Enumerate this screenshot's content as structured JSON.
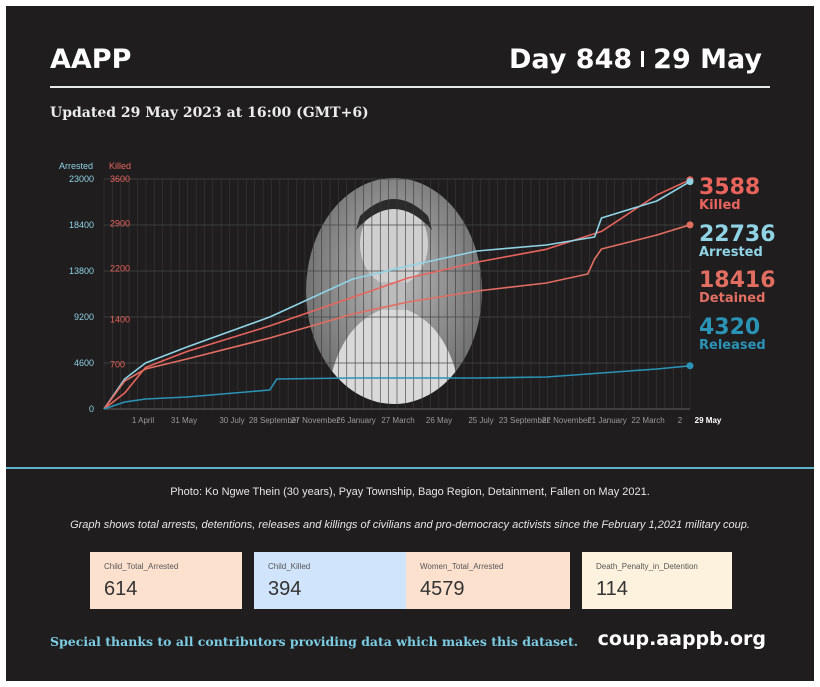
{
  "header": {
    "brand": "AAPP",
    "day": "Day 848",
    "date": "29 May",
    "updated": "Updated 29 May 2023 at 16:00 (GMT+6)"
  },
  "colors": {
    "background": "#1f1d1e",
    "arrested": "#8fd3e5",
    "killed": "#e8645d",
    "detained": "#e26e62",
    "released": "#2a93b6",
    "accent_rule": "#5fb1c9"
  },
  "chart_data": {
    "type": "line",
    "axis_titles": {
      "left_a": "Arrested",
      "left_b": "Killed"
    },
    "y_arrested_ticks": [
      "23000",
      "18400",
      "13800",
      "9200",
      "4600",
      "0"
    ],
    "y_killed_ticks": [
      "3600",
      "2900",
      "2200",
      "1400",
      "700"
    ],
    "ylim_arrested": [
      0,
      23000
    ],
    "ylim_killed": [
      0,
      3600
    ],
    "x_ticks": [
      "1 April",
      "31 May",
      "30 July",
      "28 September",
      "27 November",
      "26 January",
      "27 March",
      "26 May",
      "25 July",
      "23 September",
      "22 November",
      "21 January",
      "22 March",
      "2"
    ],
    "x_end_label": "29 May",
    "series": [
      {
        "name": "Killed",
        "axis": "killed",
        "x_day": [
          0,
          30,
          60,
          120,
          240,
          360,
          440,
          540,
          640,
          720,
          800,
          848
        ],
        "values": [
          0,
          250,
          650,
          900,
          1300,
          1750,
          2050,
          2300,
          2500,
          2780,
          3350,
          3588
        ]
      },
      {
        "name": "Arrested",
        "axis": "arrested",
        "x_day": [
          0,
          30,
          60,
          120,
          240,
          360,
          440,
          540,
          640,
          710,
          720,
          800,
          848
        ],
        "values": [
          0,
          3000,
          4600,
          6200,
          9200,
          13000,
          14300,
          15800,
          16400,
          17200,
          19100,
          20800,
          22736
        ]
      },
      {
        "name": "Detained",
        "axis": "arrested",
        "x_day": [
          0,
          30,
          60,
          120,
          240,
          360,
          440,
          540,
          640,
          700,
          710,
          720,
          800,
          848
        ],
        "values": [
          0,
          2800,
          4000,
          5000,
          7100,
          9500,
          10700,
          11800,
          12600,
          13500,
          15000,
          16000,
          17400,
          18416
        ]
      },
      {
        "name": "Released",
        "axis": "arrested",
        "x_day": [
          0,
          30,
          60,
          120,
          240,
          250,
          360,
          540,
          640,
          720,
          800,
          848
        ],
        "values": [
          0,
          700,
          1000,
          1200,
          1900,
          3000,
          3100,
          3100,
          3200,
          3600,
          4000,
          4320
        ]
      }
    ],
    "end_labels": [
      {
        "value": "3588",
        "label": "Killed"
      },
      {
        "value": "22736",
        "label": "Arrested"
      },
      {
        "value": "18416",
        "label": "Detained"
      },
      {
        "value": "4320",
        "label": "Released"
      }
    ]
  },
  "captions": {
    "photo": "Photo: Ko Ngwe Thein (30 years), Pyay Township, Bago Region, Detainment, Fallen on May 2021.",
    "graph": "Graph shows total arrests, detentions, releases and killings of civilians and pro-democracy activists since the February 1,2021 military coup."
  },
  "stats": [
    {
      "label": "Child_Total_Arrested",
      "value": "614",
      "color": "#fde1cf"
    },
    {
      "label": "Child_Killed",
      "value": "394",
      "color": "#d0e4fb"
    },
    {
      "label": "Women_Total_Arrested",
      "value": "4579",
      "color": "#fde1cf"
    },
    {
      "label": "Death_Penalty_in_Detention",
      "value": "114",
      "color": "#fdf2dd"
    }
  ],
  "footer": {
    "thanks": "Special thanks to all contributors providing data which makes this dataset.",
    "site": "coup.aappb.org"
  }
}
